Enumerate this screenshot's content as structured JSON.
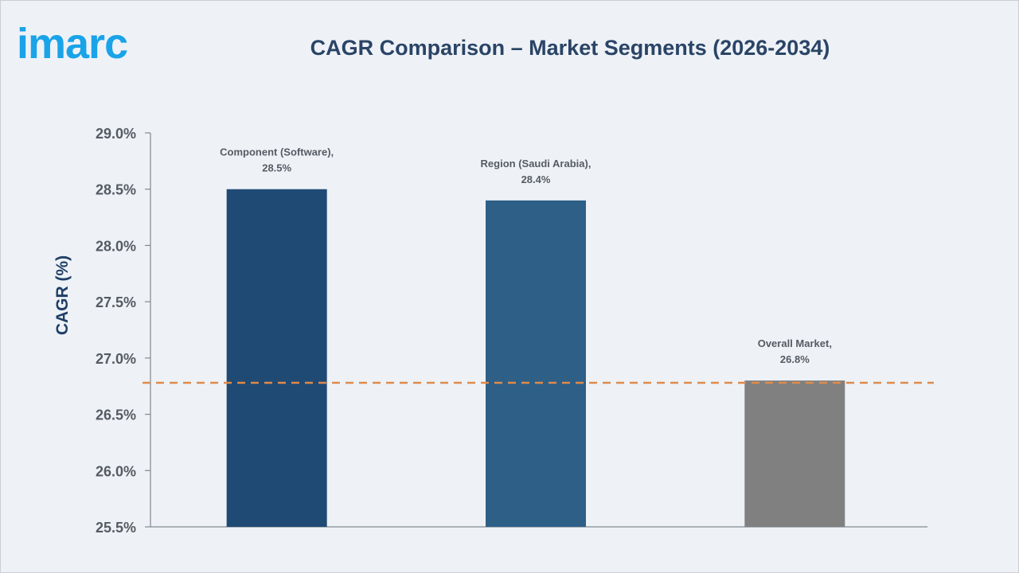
{
  "logo": {
    "text": "imarc",
    "color": "#1aa3e8"
  },
  "chart_data": {
    "type": "bar",
    "title": "CAGR Comparison – Market Segments (2026-2034)",
    "xlabel": "",
    "ylabel": "CAGR (%)",
    "ylim": [
      25.5,
      29.0
    ],
    "yticks": [
      25.5,
      26.0,
      26.5,
      27.0,
      27.5,
      28.0,
      28.5,
      29.0
    ],
    "ytick_labels": [
      "25.5%",
      "26.0%",
      "26.5%",
      "27.0%",
      "27.5%",
      "28.0%",
      "28.5%",
      "29.0%"
    ],
    "grid": false,
    "legend": "none",
    "categories": [
      "Component (Software)",
      "Region (Saudi Arabia)",
      "Overall Market"
    ],
    "values": [
      28.5,
      28.4,
      26.8
    ],
    "data_labels": [
      [
        "Component (Software),",
        "28.5%"
      ],
      [
        "Region (Saudi Arabia),",
        "28.4%"
      ],
      [
        "Overall Market,",
        "26.8%"
      ]
    ],
    "bar_colors": [
      "#1f4a73",
      "#2e5f87",
      "#808080"
    ],
    "reference_line": {
      "value": 26.78,
      "style": "dashed",
      "color": "#e08a4a"
    }
  }
}
